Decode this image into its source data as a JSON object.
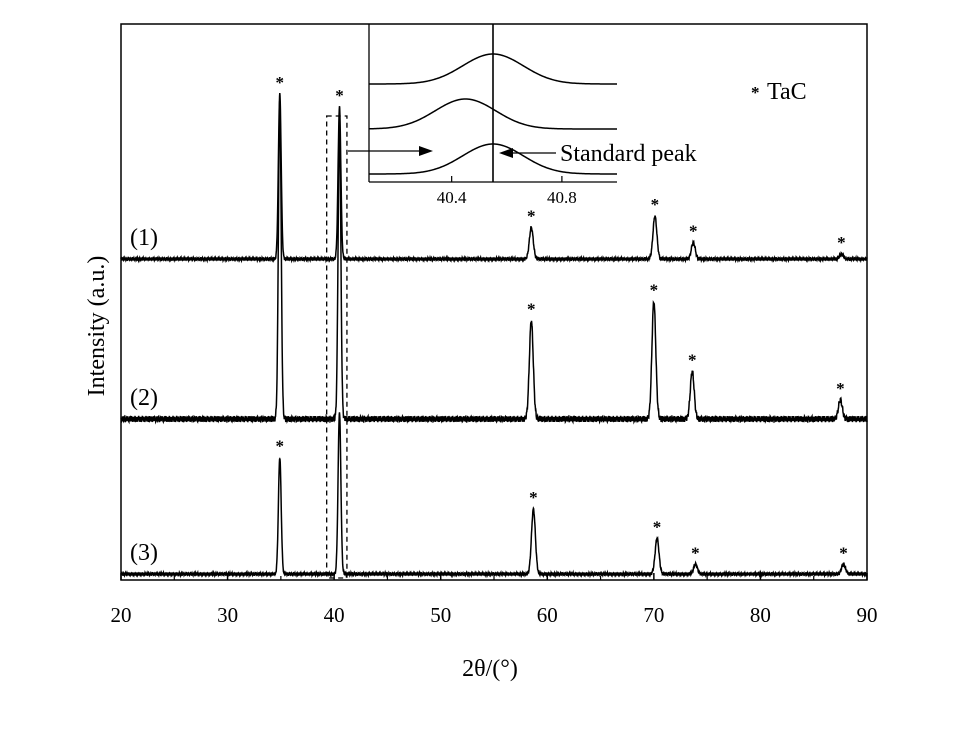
{
  "chart_data": {
    "type": "line",
    "xlabel": "2θ/(°)",
    "ylabel": "Intensity (a.u.)",
    "xlim": [
      20,
      90
    ],
    "x_ticks": [
      20,
      30,
      40,
      50,
      60,
      70,
      80,
      90
    ],
    "legend": {
      "marker": "*",
      "text": "TaC",
      "placement": "top-right"
    },
    "series": [
      {
        "name": "(1)",
        "baseline": 0,
        "peaks": [
          {
            "x": 34.9,
            "height": 100,
            "marked": true
          },
          {
            "x": 40.5,
            "height": 92,
            "marked": true
          },
          {
            "x": 58.5,
            "height": 19,
            "marked": true
          },
          {
            "x": 70.1,
            "height": 26,
            "marked": true
          },
          {
            "x": 73.7,
            "height": 10,
            "marked": true
          },
          {
            "x": 87.6,
            "height": 3,
            "marked": true
          }
        ]
      },
      {
        "name": "(2)",
        "baseline": 0,
        "peaks": [
          {
            "x": 34.9,
            "height": 100,
            "marked": false
          },
          {
            "x": 40.5,
            "height": 92,
            "marked": false
          },
          {
            "x": 58.5,
            "height": 31,
            "marked": true
          },
          {
            "x": 70.0,
            "height": 37,
            "marked": true
          },
          {
            "x": 73.6,
            "height": 15,
            "marked": true
          },
          {
            "x": 87.5,
            "height": 6,
            "marked": true
          }
        ]
      },
      {
        "name": "(3)",
        "baseline": 0,
        "peaks": [
          {
            "x": 34.9,
            "height": 72,
            "marked": true
          },
          {
            "x": 40.5,
            "height": 100,
            "marked": false
          },
          {
            "x": 58.7,
            "height": 40,
            "marked": true
          },
          {
            "x": 70.3,
            "height": 22,
            "marked": true
          },
          {
            "x": 73.9,
            "height": 6,
            "marked": true
          },
          {
            "x": 87.8,
            "height": 6,
            "marked": true
          }
        ]
      }
    ],
    "highlight_range": [
      39.3,
      41.2
    ],
    "inset": {
      "x_ticks": [
        40.4,
        40.8
      ],
      "xlim": [
        40.1,
        41.0
      ],
      "standard_peak_x": 40.55,
      "annotation": "Standard peak",
      "curves": [
        {
          "peak_x": 40.55
        },
        {
          "peak_x": 40.45
        },
        {
          "peak_x": 40.55
        }
      ]
    }
  }
}
